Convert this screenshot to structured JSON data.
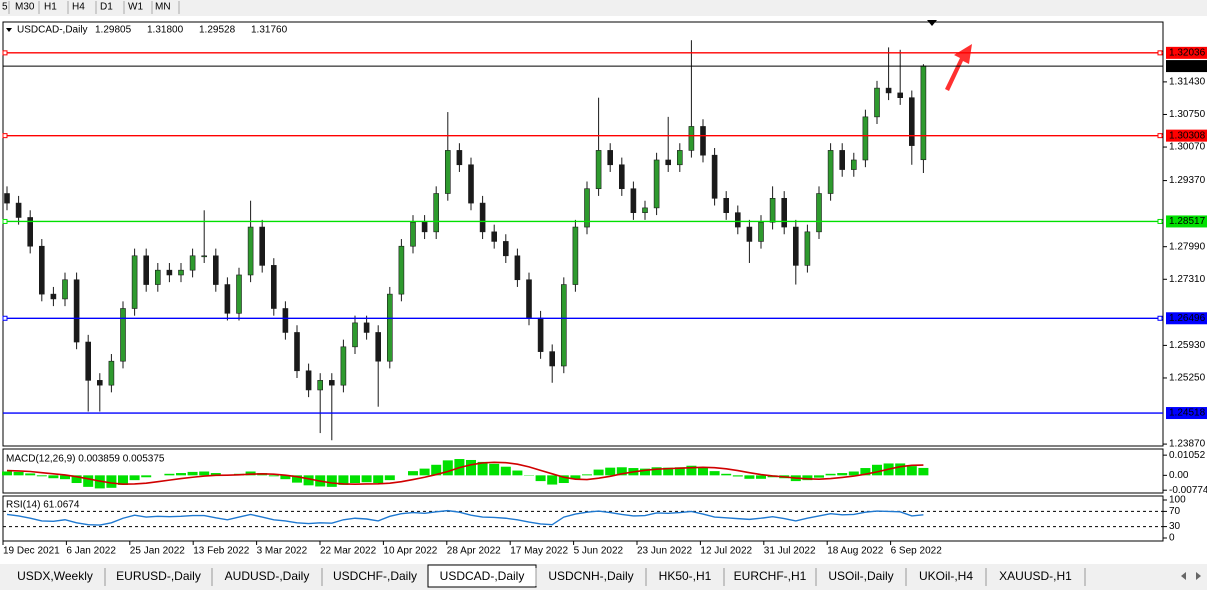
{
  "toolbar": {
    "timeframes": [
      "5",
      "M30",
      "H1",
      "H4",
      "D1",
      "W1",
      "MN"
    ]
  },
  "chart_data": {
    "type": "candlestick",
    "title": "USDCAD-,Daily",
    "last_bar_labels": [
      "1.29805",
      "1.31800",
      "1.29528",
      "1.31760"
    ],
    "bull_color": "#2e9a2e",
    "bear_color": "#1a1a1a",
    "wick_color": "#1a1a1a",
    "ylim": [
      1.2383,
      1.3268
    ],
    "yticks": [
      {
        "value": 1.3143,
        "label": "1.31430"
      },
      {
        "value": 1.3075,
        "label": "1.30750"
      },
      {
        "value": 1.3007,
        "label": "1.30070"
      },
      {
        "value": 1.2937,
        "label": "1.29370"
      },
      {
        "value": 1.2799,
        "label": "1.27990"
      },
      {
        "value": 1.2731,
        "label": "1.27310"
      },
      {
        "value": 1.2593,
        "label": "1.25930"
      },
      {
        "value": 1.2525,
        "label": "1.25250"
      },
      {
        "value": 1.2387,
        "label": "1.23870"
      }
    ],
    "levels": [
      {
        "value": 1.32036,
        "label": "1.32036",
        "color": "#ff0000",
        "handles": true
      },
      {
        "value": 1.3176,
        "label": "1.31760",
        "color": "#000000",
        "handles": false
      },
      {
        "value": 1.30308,
        "label": "1.30308",
        "color": "#ff0000",
        "handles": true
      },
      {
        "value": 1.28517,
        "label": "1.28517",
        "color": "#00e000",
        "handles": true
      },
      {
        "value": 1.26496,
        "label": "1.26496",
        "color": "#0000ff",
        "handles": true
      },
      {
        "value": 1.24518,
        "label": "1.24518",
        "color": "#0000ff",
        "handles": false
      }
    ],
    "open": [
      1.291,
      1.289,
      1.286,
      1.28,
      1.27,
      1.269,
      1.273,
      1.26,
      1.252,
      1.251,
      1.256,
      1.267,
      1.278,
      1.272,
      1.275,
      1.274,
      1.275,
      1.278,
      1.278,
      1.272,
      1.266,
      1.274,
      1.284,
      1.276,
      1.267,
      1.262,
      1.254,
      1.25,
      1.252,
      1.251,
      1.259,
      1.264,
      1.262,
      1.256,
      1.27,
      1.28,
      1.285,
      1.283,
      1.291,
      1.3,
      1.297,
      1.289,
      1.283,
      1.281,
      1.278,
      1.273,
      1.265,
      1.258,
      1.255,
      1.272,
      1.284,
      1.292,
      1.3,
      1.297,
      1.292,
      1.287,
      1.288,
      1.298,
      1.297,
      1.3,
      1.305,
      1.299,
      1.29,
      1.287,
      1.284,
      1.281,
      1.285,
      1.29,
      1.284,
      1.276,
      1.283,
      1.291,
      1.3,
      1.296,
      1.298,
      1.307,
      1.313,
      1.312,
      1.311,
      1.29805
    ],
    "high": [
      1.2925,
      1.2905,
      1.2875,
      1.2815,
      1.2715,
      1.2745,
      1.2745,
      1.2615,
      1.2535,
      1.2575,
      1.2685,
      1.2795,
      1.2795,
      1.2765,
      1.2765,
      1.2765,
      1.2795,
      1.2875,
      1.2795,
      1.2735,
      1.2755,
      1.2895,
      1.2855,
      1.2775,
      1.2685,
      1.2635,
      1.2555,
      1.2535,
      1.2535,
      1.2605,
      1.2655,
      1.2655,
      1.2635,
      1.2715,
      1.2815,
      1.2865,
      1.2865,
      1.2925,
      1.308,
      1.3015,
      1.2985,
      1.2905,
      1.2845,
      1.2825,
      1.2795,
      1.2745,
      1.2665,
      1.2595,
      1.2735,
      1.2855,
      1.2935,
      1.311,
      1.3015,
      1.2985,
      1.2935,
      1.2895,
      1.2995,
      1.307,
      1.3015,
      1.323,
      1.3065,
      1.3005,
      1.2915,
      1.2885,
      1.2855,
      1.2865,
      1.2925,
      1.2915,
      1.2855,
      1.2845,
      1.2925,
      1.3015,
      1.3015,
      1.2995,
      1.3085,
      1.3145,
      1.3215,
      1.321,
      1.3125,
      1.318
    ],
    "low": [
      1.2875,
      1.2845,
      1.2785,
      1.2685,
      1.2675,
      1.2675,
      1.2585,
      1.2455,
      1.2455,
      1.2495,
      1.2545,
      1.2655,
      1.2705,
      1.2705,
      1.2725,
      1.2725,
      1.2735,
      1.2765,
      1.2705,
      1.2645,
      1.2645,
      1.2725,
      1.2745,
      1.2655,
      1.2605,
      1.2525,
      1.2485,
      1.241,
      1.2395,
      1.2495,
      1.2575,
      1.2605,
      1.2465,
      1.2545,
      1.2685,
      1.2785,
      1.2815,
      1.2815,
      1.2895,
      1.2955,
      1.2875,
      1.2815,
      1.2795,
      1.2765,
      1.2715,
      1.2635,
      1.2565,
      1.2515,
      1.2535,
      1.2705,
      1.2825,
      1.2905,
      1.2955,
      1.2905,
      1.2855,
      1.2855,
      1.2865,
      1.2955,
      1.2955,
      1.2985,
      1.2975,
      1.2885,
      1.2855,
      1.2825,
      1.2765,
      1.2795,
      1.2835,
      1.2825,
      1.272,
      1.2745,
      1.2815,
      1.2895,
      1.2945,
      1.2945,
      1.2965,
      1.3055,
      1.3105,
      1.3095,
      1.297,
      1.29528
    ],
    "close": [
      1.289,
      1.286,
      1.28,
      1.27,
      1.269,
      1.273,
      1.26,
      1.252,
      1.251,
      1.256,
      1.267,
      1.278,
      1.272,
      1.275,
      1.274,
      1.275,
      1.278,
      1.278,
      1.272,
      1.266,
      1.274,
      1.284,
      1.276,
      1.267,
      1.262,
      1.254,
      1.25,
      1.252,
      1.251,
      1.259,
      1.264,
      1.262,
      1.256,
      1.27,
      1.28,
      1.285,
      1.283,
      1.291,
      1.3,
      1.297,
      1.289,
      1.283,
      1.281,
      1.278,
      1.273,
      1.265,
      1.258,
      1.255,
      1.272,
      1.284,
      1.292,
      1.3,
      1.297,
      1.292,
      1.287,
      1.288,
      1.298,
      1.297,
      1.3,
      1.305,
      1.299,
      1.29,
      1.287,
      1.284,
      1.281,
      1.285,
      1.29,
      1.284,
      1.276,
      1.283,
      1.291,
      1.3,
      1.296,
      1.298,
      1.307,
      1.313,
      1.312,
      1.311,
      1.301,
      1.3176
    ],
    "x_labels": [
      "19 Dec 2021",
      "6 Jan 2022",
      "25 Jan 2022",
      "13 Feb 2022",
      "3 Mar 2022",
      "22 Mar 2022",
      "10 Apr 2022",
      "28 Apr 2022",
      "17 May 2022",
      "5 Jun 2022",
      "23 Jun 2022",
      "12 Jul 2022",
      "31 Jul 2022",
      "18 Aug 2022",
      "6 Sep 2022"
    ],
    "macd": {
      "title": "MACD(12,26,9) 0.003859 0.005375",
      "ylim": [
        -0.0092,
        0.0132
      ],
      "yticks": [
        {
          "value": 0.01052,
          "label": "0.01052"
        },
        {
          "value": 0,
          "label": "0.00"
        },
        {
          "value": -0.00774,
          "label": "-0.00774"
        }
      ],
      "histogram_color": "#00e000",
      "signal_color": "#d00000",
      "histogram": [
        0.002,
        0.0018,
        0.001,
        -0.0005,
        -0.0015,
        -0.002,
        -0.004,
        -0.006,
        -0.0068,
        -0.0065,
        -0.005,
        -0.0025,
        -0.001,
        0.0,
        0.0008,
        0.0012,
        0.0018,
        0.002,
        0.0012,
        0.0002,
        0.0008,
        0.002,
        0.0012,
        -0.0005,
        -0.002,
        -0.0038,
        -0.0052,
        -0.0058,
        -0.006,
        -0.005,
        -0.004,
        -0.0036,
        -0.004,
        -0.0025,
        0.0,
        0.0022,
        0.0035,
        0.0055,
        0.0078,
        0.0085,
        0.008,
        0.007,
        0.006,
        0.0045,
        0.0025,
        -0.0002,
        -0.003,
        -0.0048,
        -0.004,
        -0.002,
        0.0005,
        0.003,
        0.004,
        0.0042,
        0.0038,
        0.0035,
        0.0042,
        0.004,
        0.0042,
        0.005,
        0.004,
        0.0022,
        0.0008,
        -0.0006,
        -0.0018,
        -0.0018,
        -0.001,
        -0.0015,
        -0.003,
        -0.0025,
        -0.0012,
        0.0008,
        0.0012,
        0.002,
        0.0038,
        0.0055,
        0.0062,
        0.0062,
        0.0048,
        0.003859
      ],
      "signal": [
        0.0025,
        0.0023,
        0.002,
        0.0014,
        0.0008,
        0.0002,
        -0.0007,
        -0.0018,
        -0.003,
        -0.004,
        -0.0046,
        -0.0045,
        -0.0041,
        -0.0033,
        -0.0025,
        -0.0017,
        -0.001,
        -0.0004,
        0.0,
        0.0001,
        0.0003,
        0.0006,
        0.0008,
        0.0006,
        0.0001,
        -0.0007,
        -0.0018,
        -0.003,
        -0.004,
        -0.0045,
        -0.0046,
        -0.0045,
        -0.0044,
        -0.0041,
        -0.0033,
        -0.0022,
        -0.001,
        0.0004,
        0.002,
        0.004,
        0.0055,
        0.0065,
        0.0068,
        0.0066,
        0.0058,
        0.0044,
        0.0026,
        0.0008,
        -0.001,
        -0.002,
        -0.0022,
        -0.0015,
        -0.0005,
        0.0008,
        0.0018,
        0.0026,
        0.0032,
        0.0035,
        0.0037,
        0.004,
        0.0042,
        0.004,
        0.0034,
        0.0025,
        0.0014,
        0.0004,
        -0.0003,
        -0.0008,
        -0.0014,
        -0.0018,
        -0.002,
        -0.0017,
        -0.0011,
        -0.0004,
        0.0006,
        0.0018,
        0.0032,
        0.0045,
        0.0052,
        0.005375
      ]
    },
    "rsi": {
      "title": "RSI(14) 61.0674",
      "ylim": [
        0,
        100
      ],
      "yticks": [
        100,
        70,
        30,
        0
      ],
      "levels": [
        70,
        30
      ],
      "color": "#1e78d0",
      "values": [
        62,
        58,
        52,
        45,
        44,
        48,
        40,
        35,
        34,
        40,
        52,
        60,
        55,
        57,
        56,
        57,
        59,
        59,
        53,
        48,
        55,
        62,
        55,
        48,
        45,
        40,
        38,
        40,
        39,
        48,
        52,
        50,
        45,
        57,
        64,
        67,
        65,
        69,
        72,
        68,
        60,
        55,
        54,
        52,
        48,
        42,
        37,
        35,
        55,
        63,
        68,
        71,
        67,
        62,
        58,
        59,
        66,
        65,
        67,
        70,
        63,
        55,
        53,
        51,
        49,
        52,
        56,
        51,
        45,
        52,
        58,
        64,
        61,
        62,
        68,
        71,
        70,
        69,
        58,
        61.0674
      ]
    }
  },
  "tabs": {
    "items": [
      "USDX,Weekly",
      "EURUSD-,Daily",
      "AUDUSD-,Daily",
      "USDCHF-,Daily",
      "USDCAD-,Daily",
      "USDCNH-,Daily",
      "HK50-,H1",
      "EURCHF-,H1",
      "USOil-,Daily",
      "UKOil-,H4",
      "XAUUSD-,H1"
    ],
    "active": 4
  }
}
